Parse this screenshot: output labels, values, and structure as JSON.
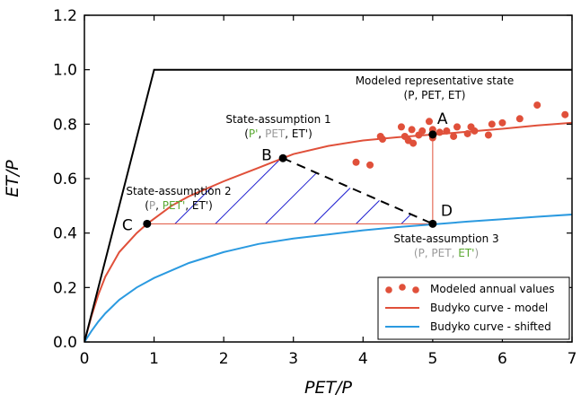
{
  "chart_data": {
    "type": "line",
    "xlabel": "PET/P",
    "ylabel": "ET/P",
    "xlim": [
      0,
      7
    ],
    "ylim": [
      0,
      1.2
    ],
    "xticks": [
      "0",
      "1",
      "2",
      "3",
      "4",
      "5",
      "6",
      "7"
    ],
    "yticks": [
      "0.0",
      "0.2",
      "0.4",
      "0.6",
      "0.8",
      "1.0",
      "1.2"
    ],
    "grid": false,
    "legend": {
      "placement": "bottom-right",
      "entries": [
        {
          "label": "Modeled annual values",
          "kind": "scatter",
          "color": "#e0503a"
        },
        {
          "label": "Budyko curve - model",
          "kind": "line",
          "color": "#e0503a"
        },
        {
          "label": "Budyko curve - shifted",
          "kind": "line",
          "color": "#2b9ae0"
        }
      ]
    },
    "series": [
      {
        "name": "Budyko curve - model",
        "color": "#e0503a",
        "x": [
          0,
          0.1,
          0.2,
          0.3,
          0.5,
          0.75,
          0.9,
          1.25,
          1.5,
          2,
          2.5,
          2.85,
          3,
          3.5,
          4,
          4.5,
          5,
          5.5,
          6,
          6.5,
          7
        ],
        "y": [
          0,
          0.094,
          0.174,
          0.24,
          0.33,
          0.4,
          0.434,
          0.5,
          0.535,
          0.59,
          0.64,
          0.675,
          0.69,
          0.72,
          0.74,
          0.752,
          0.762,
          0.772,
          0.783,
          0.795,
          0.805
        ]
      },
      {
        "name": "Budyko curve - shifted",
        "color": "#2b9ae0",
        "x": [
          0,
          0.1,
          0.2,
          0.3,
          0.5,
          0.75,
          1,
          1.5,
          2,
          2.5,
          3,
          3.5,
          4,
          4.5,
          5,
          5.5,
          6,
          6.5,
          7
        ],
        "y": [
          0,
          0.04,
          0.075,
          0.105,
          0.155,
          0.2,
          0.235,
          0.29,
          0.33,
          0.36,
          0.38,
          0.395,
          0.41,
          0.422,
          0.432,
          0.442,
          0.451,
          0.46,
          0.468
        ]
      },
      {
        "name": "energy and water limits",
        "color": "#000000",
        "x": [
          0,
          1,
          7
        ],
        "y": [
          0,
          1,
          1
        ]
      }
    ],
    "scatter": {
      "name": "Modeled annual values",
      "color": "#e0503a",
      "points": [
        [
          3.9,
          0.66
        ],
        [
          4.1,
          0.65
        ],
        [
          4.25,
          0.755
        ],
        [
          4.28,
          0.745
        ],
        [
          4.55,
          0.79
        ],
        [
          4.6,
          0.755
        ],
        [
          4.65,
          0.74
        ],
        [
          4.7,
          0.78
        ],
        [
          4.72,
          0.73
        ],
        [
          4.8,
          0.76
        ],
        [
          4.85,
          0.775
        ],
        [
          4.95,
          0.81
        ],
        [
          5.0,
          0.78
        ],
        [
          5.0,
          0.75
        ],
        [
          5.1,
          0.77
        ],
        [
          5.2,
          0.775
        ],
        [
          5.3,
          0.755
        ],
        [
          5.35,
          0.79
        ],
        [
          5.5,
          0.765
        ],
        [
          5.55,
          0.79
        ],
        [
          5.6,
          0.775
        ],
        [
          5.85,
          0.8
        ],
        [
          5.8,
          0.76
        ],
        [
          6.0,
          0.805
        ],
        [
          6.25,
          0.82
        ],
        [
          6.5,
          0.87
        ],
        [
          6.9,
          0.835
        ]
      ]
    },
    "key_points": [
      {
        "label": "A",
        "x": 5.0,
        "y": 0.762
      },
      {
        "label": "B",
        "x": 2.85,
        "y": 0.675
      },
      {
        "label": "C",
        "x": 0.9,
        "y": 0.434
      },
      {
        "label": "D",
        "x": 5.0,
        "y": 0.434
      }
    ],
    "annotations": {
      "A": {
        "title": "Modeled representative state",
        "vars": [
          {
            "t": "(P, PET, ET)",
            "c": "#000000"
          }
        ]
      },
      "B": {
        "title": "State-assumption 1",
        "vars": [
          {
            "t": "(",
            "c": "#000000"
          },
          {
            "t": "P'",
            "c": "#5aa832"
          },
          {
            "t": ", ",
            "c": "#000000"
          },
          {
            "t": "PET",
            "c": "#999999"
          },
          {
            "t": ", ET')",
            "c": "#000000"
          }
        ]
      },
      "C": {
        "title": "State-assumption 2",
        "vars": [
          {
            "t": "(",
            "c": "#000000"
          },
          {
            "t": "P",
            "c": "#999999"
          },
          {
            "t": ", ",
            "c": "#000000"
          },
          {
            "t": "PET'",
            "c": "#5aa832"
          },
          {
            "t": ", ET')",
            "c": "#000000"
          }
        ]
      },
      "D": {
        "title": "State-assumption 3",
        "vars": [
          {
            "t": "(",
            "c": "#999999"
          },
          {
            "t": "P, PET, ",
            "c": "#999999"
          },
          {
            "t": "ET'",
            "c": "#5aa832"
          },
          {
            "t": ")",
            "c": "#999999"
          }
        ]
      }
    },
    "colors": {
      "hatch": "#2020d0",
      "dashed_line": "#000000",
      "helper_line": "#e0503a"
    }
  }
}
